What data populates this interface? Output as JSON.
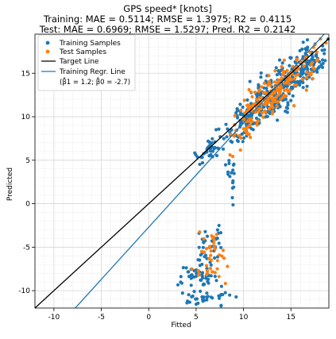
{
  "chart_data": {
    "type": "scatter",
    "title": "GPS speed* [knots]",
    "subtitle_lines": [
      "Training: MAE = 0.5114; RMSE = 1.3975; R2 = 0.4115",
      "Test: MAE = 0.6969; RMSE = 1.5297; Pred. R2 = 0.2142"
    ],
    "xlabel": "Fitted",
    "ylabel": "Predicted",
    "xlim": [
      -12,
      19
    ],
    "ylim": [
      -12,
      19.5
    ],
    "xticks": [
      -10,
      -5,
      0,
      5,
      10,
      15
    ],
    "yticks": [
      -10,
      -5,
      0,
      5,
      10,
      15
    ],
    "grid": true,
    "legend_position": "top-left",
    "legend": [
      {
        "label": "Training Samples",
        "kind": "marker",
        "color": "#1f77b4"
      },
      {
        "label": "Test Samples",
        "kind": "marker",
        "color": "#ff7f0e"
      },
      {
        "label": "Target Line",
        "kind": "line",
        "color": "#000000"
      },
      {
        "label": "Training Regr. Line",
        "kind": "line",
        "color": "#1f77b4",
        "sublabel": "(β̂1 = 1.2; β̂0 = -2.7)"
      }
    ],
    "series": [
      {
        "name": "Training Samples",
        "color": "#1f77b4",
        "clusters": [
          {
            "cx": 13.5,
            "cy": 13.0,
            "spread_x": 2.6,
            "spread_y": 1.4,
            "slope": 1.0,
            "n": 260
          },
          {
            "cx": 16.5,
            "cy": 15.2,
            "spread_x": 1.2,
            "spread_y": 0.9,
            "slope": 0.8,
            "n": 60
          },
          {
            "cx": 10.0,
            "cy": 9.5,
            "spread_x": 1.0,
            "spread_y": 1.0,
            "slope": 1.0,
            "n": 60
          },
          {
            "cx": 6.5,
            "cy": 6.2,
            "spread_x": 0.9,
            "spread_y": 0.6,
            "slope": 0.6,
            "n": 40
          },
          {
            "cx": 8.7,
            "cy": 3.5,
            "spread_x": 0.3,
            "spread_y": 1.5,
            "slope": 0.0,
            "n": 18
          },
          {
            "cx": 6.5,
            "cy": -5.2,
            "spread_x": 0.8,
            "spread_y": 1.2,
            "slope": 0.0,
            "n": 40
          },
          {
            "cx": 5.3,
            "cy": -8.3,
            "spread_x": 1.0,
            "spread_y": 0.6,
            "slope": 0.0,
            "n": 40
          },
          {
            "cx": 5.5,
            "cy": -10.8,
            "spread_x": 1.6,
            "spread_y": 0.5,
            "slope": 0.0,
            "n": 35
          }
        ]
      },
      {
        "name": "Test Samples",
        "color": "#ff7f0e",
        "clusters": [
          {
            "cx": 13.8,
            "cy": 13.2,
            "spread_x": 2.3,
            "spread_y": 1.2,
            "slope": 1.0,
            "n": 180
          },
          {
            "cx": 10.5,
            "cy": 10.0,
            "spread_x": 0.9,
            "spread_y": 0.9,
            "slope": 1.0,
            "n": 35
          },
          {
            "cx": 6.6,
            "cy": -5.5,
            "spread_x": 0.7,
            "spread_y": 1.3,
            "slope": 0.0,
            "n": 25
          },
          {
            "cx": 6.0,
            "cy": -7.8,
            "spread_x": 0.9,
            "spread_y": 0.6,
            "slope": 0.0,
            "n": 15
          }
        ]
      }
    ],
    "lines": [
      {
        "name": "Target Line",
        "color": "#000000",
        "slope": 1.0,
        "intercept": 0.0
      },
      {
        "name": "Training Regr. Line",
        "color": "#1f77b4",
        "slope": 1.2,
        "intercept": -2.7
      }
    ]
  }
}
